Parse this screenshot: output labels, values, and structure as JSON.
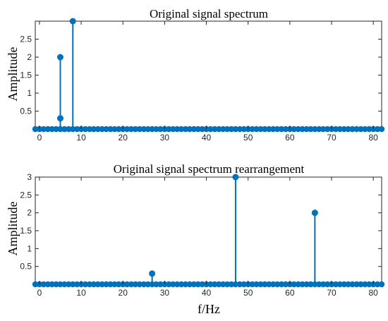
{
  "colors": {
    "series": "#0072BD",
    "axis": "#262626",
    "background": "#ffffff"
  },
  "chart_data": [
    {
      "type": "stem",
      "title": "Original signal spectrum",
      "ylabel": "Amplitude",
      "xlabel": "",
      "xlim": [
        -1,
        82
      ],
      "ylim": [
        0,
        3
      ],
      "xticks": [
        0,
        10,
        20,
        30,
        40,
        50,
        60,
        70,
        80
      ],
      "yticks": [
        0.5,
        1,
        1.5,
        2,
        2.5
      ],
      "grid": false,
      "stems": [
        {
          "x": 5,
          "y": 2
        },
        {
          "x": 5,
          "y": 0.3
        },
        {
          "x": 8,
          "y": 3
        }
      ],
      "baseline_markers": "zero-valued samples at every integer x from 0 to 82"
    },
    {
      "type": "stem",
      "title": "Original signal spectrum rearrangement",
      "ylabel": "Amplitude",
      "xlabel": "f/Hz",
      "xlim": [
        -1,
        82
      ],
      "ylim": [
        0,
        3
      ],
      "xticks": [
        0,
        10,
        20,
        30,
        40,
        50,
        60,
        70,
        80
      ],
      "yticks": [
        0.5,
        1,
        1.5,
        2,
        2.5,
        3
      ],
      "grid": false,
      "stems": [
        {
          "x": 27,
          "y": 0.3
        },
        {
          "x": 47,
          "y": 3
        },
        {
          "x": 66,
          "y": 2
        }
      ],
      "baseline_markers": "zero-valued samples at every integer x from 0 to 82"
    }
  ]
}
